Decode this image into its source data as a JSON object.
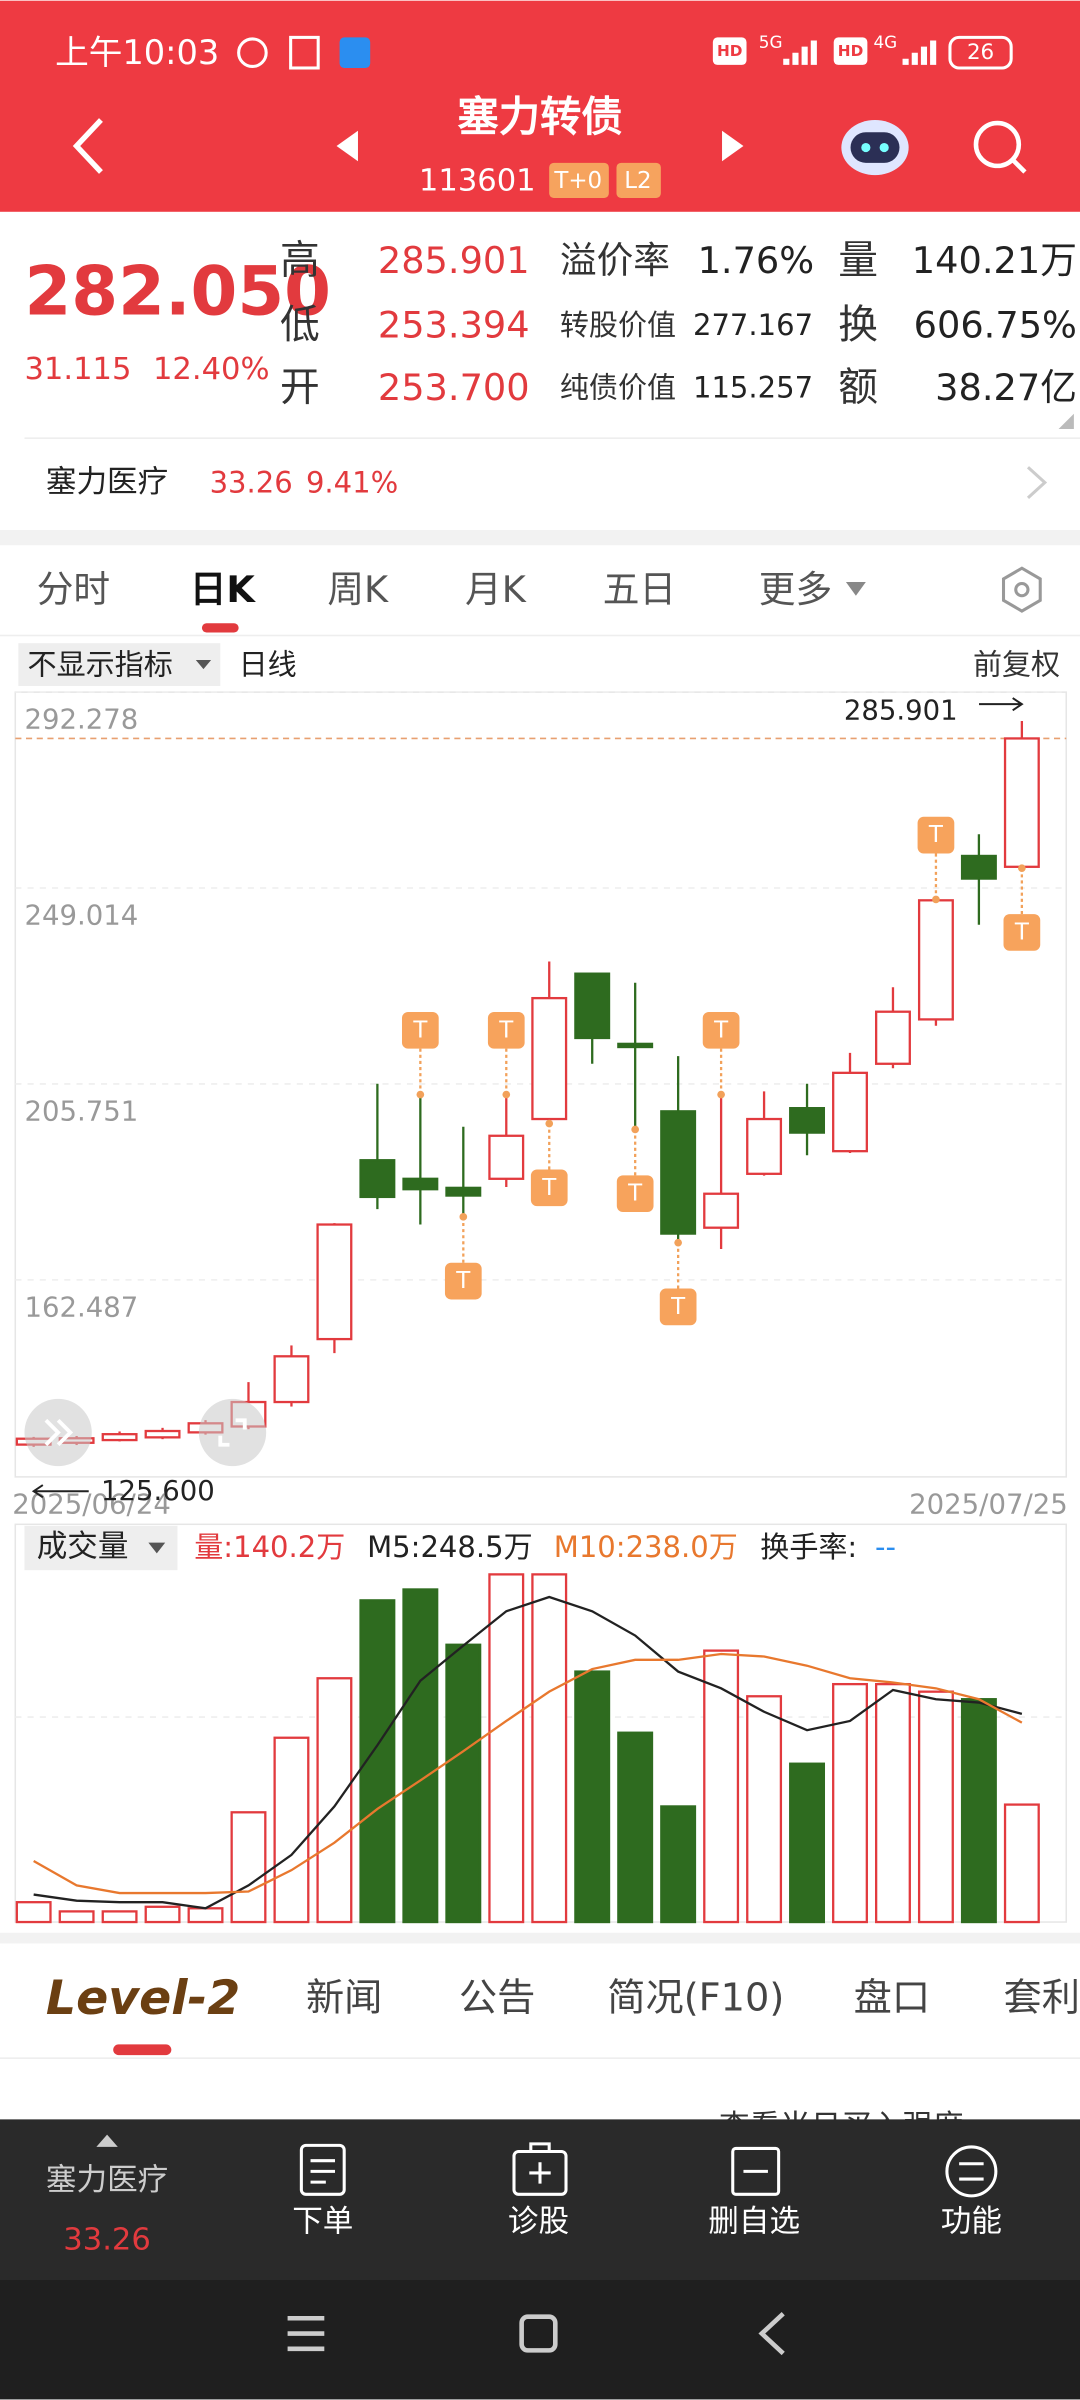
{
  "status_bar": {
    "time": "上午10:03",
    "hd": "HD",
    "net1": "5G",
    "net2": "4G",
    "battery": "26"
  },
  "header": {
    "title": "塞力转债",
    "code": "113601",
    "badges": [
      "T+0",
      "L2"
    ]
  },
  "quote": {
    "price": "282.050",
    "change": "31.115",
    "change_pct": "12.40%",
    "left": [
      {
        "label": "高",
        "value": "285.901"
      },
      {
        "label": "低",
        "value": "253.394"
      },
      {
        "label": "开",
        "value": "253.700"
      }
    ],
    "mid": [
      {
        "label": "溢价率",
        "value": "1.76%"
      },
      {
        "label": "转股价值",
        "value": "277.167"
      },
      {
        "label": "纯债价值",
        "value": "115.257"
      }
    ],
    "right": [
      {
        "label": "量",
        "value": "140.21万"
      },
      {
        "label": "换",
        "value": "606.75%"
      },
      {
        "label": "额",
        "value": "38.27亿"
      }
    ]
  },
  "stock": {
    "name": "塞力医疗",
    "price": "33.26",
    "change_pct": "9.41%"
  },
  "tabs": [
    "分时",
    "日K",
    "周K",
    "月K",
    "五日",
    "更多"
  ],
  "toolbar": {
    "indicator": "不显示指标",
    "period": "日线",
    "adjust": "前复权"
  },
  "chart_data": {
    "type": "candlestick",
    "categories": [
      "2025/06/24",
      null,
      null,
      null,
      null,
      null,
      null,
      null,
      null,
      null,
      null,
      null,
      null,
      null,
      null,
      null,
      null,
      null,
      null,
      null,
      null,
      null,
      null,
      "2025/07/25"
    ],
    "open": [
      126.1,
      126.5,
      127.1,
      127.7,
      128.8,
      130.1,
      135.5,
      149.4,
      188.9,
      184.8,
      182.8,
      184.8,
      198.0,
      230.1,
      214.6,
      199.7,
      174.0,
      185.9,
      200.4,
      190.9,
      210.2,
      220.0,
      256.1,
      253.7
    ],
    "high": [
      127.8,
      128.0,
      129.0,
      129.8,
      131.5,
      139.9,
      148.0,
      175.0,
      205.8,
      203.4,
      196.3,
      203.4,
      232.8,
      230.1,
      228.1,
      211.9,
      203.4,
      204.1,
      205.8,
      212.6,
      227.1,
      246.5,
      260.9,
      285.901
    ],
    "low": [
      125.6,
      126.0,
      126.8,
      127.3,
      128.3,
      129.5,
      134.5,
      146.3,
      178.1,
      174.7,
      176.4,
      183.0,
      197.0,
      210.2,
      195.7,
      170.7,
      169.3,
      185.5,
      190.0,
      190.5,
      209.2,
      218.6,
      240.9,
      253.394
    ],
    "close": [
      127.4,
      127.5,
      128.4,
      129.1,
      130.8,
      135.5,
      145.6,
      174.7,
      180.8,
      182.5,
      181.1,
      194.3,
      224.7,
      215.9,
      213.9,
      172.7,
      181.5,
      198.0,
      195.0,
      208.2,
      221.7,
      246.3,
      251.1,
      282.05
    ],
    "ylim": [
      118.97,
      292.278
    ],
    "yticks": [
      292.278,
      249.014,
      205.751,
      162.487
    ],
    "high_label": "285.901",
    "low_label": "125.600",
    "t_label": "T",
    "up_color": "#e23a3e",
    "down_color": "#2e6b1f",
    "volume": {
      "title": "成交量",
      "current": "量:140.2万",
      "m5": "M5:248.5万",
      "m10": "M10:238.0万",
      "turnover": "换手率:",
      "turnover_value": "--",
      "values": [
        23.7,
        12.7,
        12.7,
        18.2,
        16.4,
        131,
        220,
        291,
        384,
        397,
        331,
        415,
        415,
        299,
        226,
        138,
        324,
        269.5,
        189,
        284,
        284,
        275,
        266,
        140.2
      ],
      "ma5": [
        32.8,
        25.5,
        23.7,
        23.7,
        16.4,
        43.7,
        80.1,
        138,
        211,
        288,
        330,
        371,
        388,
        371,
        342,
        299,
        279,
        251,
        229,
        240,
        277,
        266,
        262,
        248.5
      ],
      "ma10": [
        72.8,
        43.7,
        34.6,
        34.6,
        34.6,
        36.4,
        61.9,
        94.7,
        135,
        169,
        204,
        240,
        275,
        302,
        313,
        313,
        320,
        317,
        306,
        291,
        286,
        279,
        266,
        238.0
      ],
      "ylim": [
        0,
        420
      ],
      "ma5_color": "#222222",
      "ma10_color": "#e8782e"
    }
  },
  "bottom_tabs": [
    "Level-2",
    "新闻",
    "公告",
    "简况(F10)",
    "盘口",
    "套利"
  ],
  "hint": "查看当日买入强度",
  "nav": {
    "stock_name": "塞力医疗",
    "stock_price": "33.26",
    "items": [
      "下单",
      "诊股",
      "删自选",
      "功能"
    ]
  }
}
